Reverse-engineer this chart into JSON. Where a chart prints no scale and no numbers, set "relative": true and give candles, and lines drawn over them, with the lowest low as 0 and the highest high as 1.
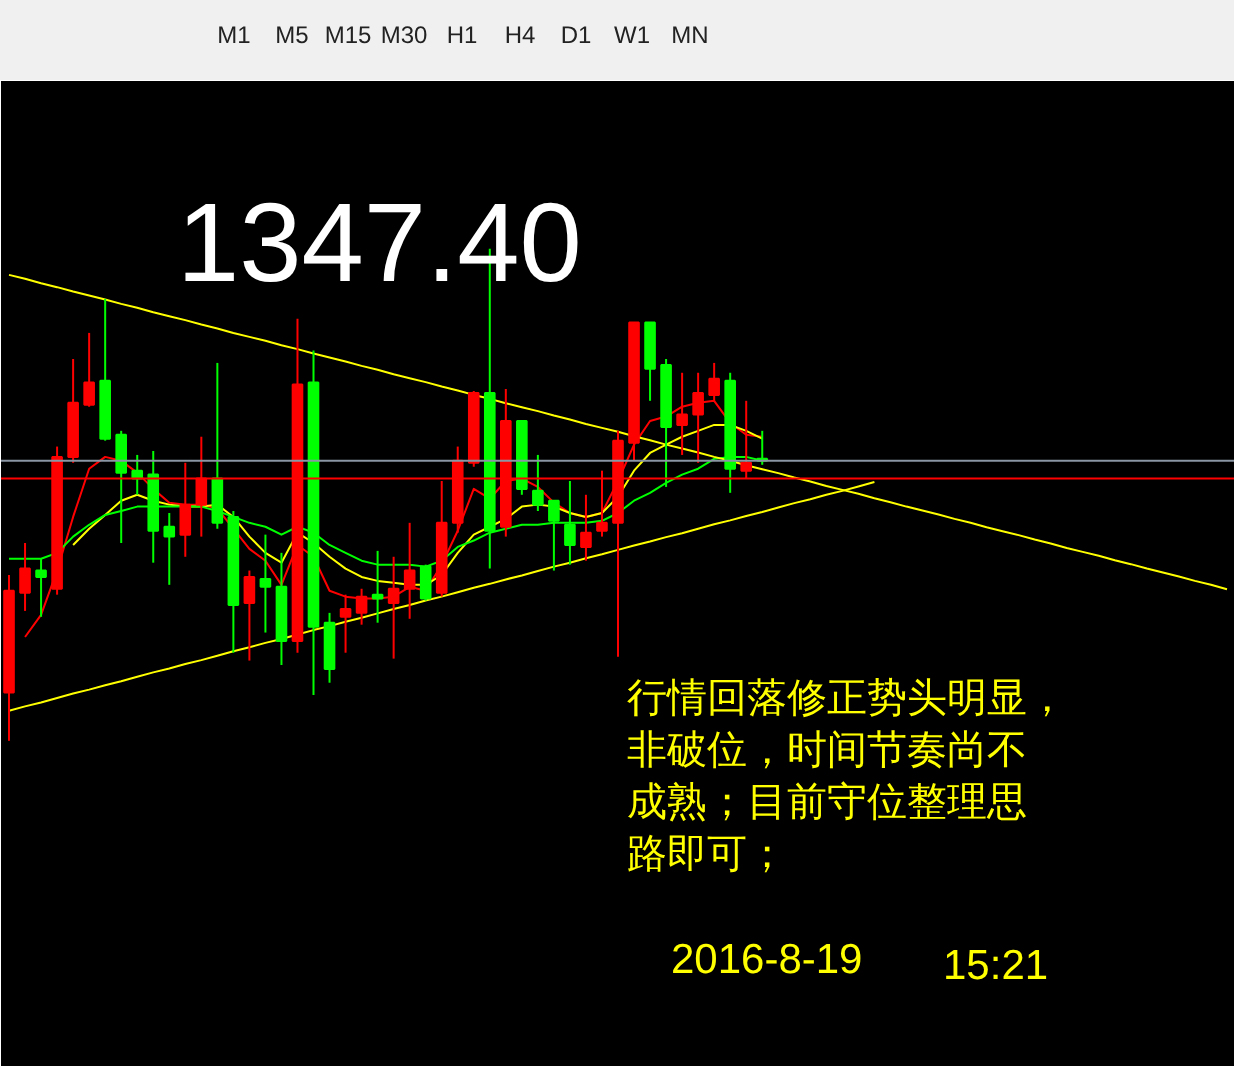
{
  "chart_data": {
    "type": "candlestick",
    "relative": true,
    "tick_labels": false,
    "categories": [
      null,
      null,
      null,
      null,
      null,
      null,
      null,
      null,
      null,
      null,
      null,
      null,
      null,
      null,
      null,
      null,
      null,
      null,
      null,
      null,
      null,
      null,
      null,
      null,
      null,
      null,
      null,
      null,
      null,
      null,
      null,
      null,
      null,
      null,
      null,
      null,
      null,
      null,
      null,
      null,
      null,
      null,
      null,
      null,
      null,
      null,
      null,
      null,
      null,
      null,
      null,
      null,
      null,
      null,
      null,
      null,
      null,
      null,
      null,
      null,
      null,
      null,
      null,
      null,
      null,
      null,
      null,
      null,
      null,
      null,
      null,
      null,
      null,
      null,
      null,
      null,
      null
    ],
    "ohlc": [
      [
        0.098,
        0.337,
        0.0,
        0.305
      ],
      [
        0.301,
        0.402,
        0.264,
        0.35
      ],
      [
        0.346,
        0.37,
        0.252,
        0.333
      ],
      [
        0.309,
        0.598,
        0.297,
        0.577
      ],
      [
        0.577,
        0.776,
        0.565,
        0.687
      ],
      [
        0.683,
        0.829,
        0.679,
        0.728
      ],
      [
        0.732,
        0.898,
        0.61,
        0.614
      ],
      [
        0.622,
        0.63,
        0.402,
        0.545
      ],
      [
        0.549,
        0.581,
        0.5,
        0.533
      ],
      [
        0.541,
        0.589,
        0.362,
        0.427
      ],
      [
        0.435,
        0.463,
        0.317,
        0.415
      ],
      [
        0.419,
        0.565,
        0.374,
        0.48
      ],
      [
        0.48,
        0.618,
        0.415,
        0.533
      ],
      [
        0.533,
        0.768,
        0.431,
        0.443
      ],
      [
        0.455,
        0.467,
        0.179,
        0.276
      ],
      [
        0.28,
        0.346,
        0.163,
        0.333
      ],
      [
        0.329,
        0.419,
        0.22,
        0.313
      ],
      [
        0.313,
        0.382,
        0.154,
        0.203
      ],
      [
        0.203,
        0.858,
        0.179,
        0.724
      ],
      [
        0.728,
        0.793,
        0.093,
        0.232
      ],
      [
        0.24,
        0.26,
        0.118,
        0.146
      ],
      [
        0.252,
        0.297,
        0.179,
        0.268
      ],
      [
        0.26,
        0.309,
        0.236,
        0.293
      ],
      [
        0.297,
        0.386,
        0.24,
        0.289
      ],
      [
        0.28,
        0.374,
        0.167,
        0.309
      ],
      [
        0.309,
        0.443,
        0.248,
        0.346
      ],
      [
        0.354,
        0.358,
        0.285,
        0.289
      ],
      [
        0.301,
        0.528,
        0.293,
        0.443
      ],
      [
        0.443,
        0.598,
        0.423,
        0.569
      ],
      [
        0.565,
        0.711,
        0.557,
        0.707
      ],
      [
        0.707,
        1.0,
        0.35,
        0.427
      ],
      [
        0.435,
        0.715,
        0.415,
        0.65
      ],
      [
        0.65,
        0.65,
        0.5,
        0.512
      ],
      [
        0.508,
        0.581,
        0.467,
        0.48
      ],
      [
        0.488,
        0.488,
        0.346,
        0.447
      ],
      [
        0.439,
        0.528,
        0.358,
        0.398
      ],
      [
        0.394,
        0.5,
        0.366,
        0.423
      ],
      [
        0.427,
        0.549,
        0.415,
        0.443
      ],
      [
        0.443,
        0.63,
        0.171,
        0.61
      ],
      [
        0.606,
        0.85,
        0.569,
        0.85
      ],
      [
        0.85,
        0.85,
        0.691,
        0.756
      ],
      [
        0.764,
        0.776,
        0.516,
        0.638
      ],
      [
        0.642,
        0.748,
        0.581,
        0.663
      ],
      [
        0.663,
        0.748,
        0.565,
        0.707
      ],
      [
        0.703,
        0.768,
        0.691,
        0.736
      ],
      [
        0.732,
        0.748,
        0.504,
        0.553
      ],
      [
        0.549,
        0.691,
        0.533,
        0.565
      ],
      [
        0.573,
        0.63,
        0.561,
        0.569
      ],
      null,
      null,
      null,
      null,
      null,
      null,
      null,
      null,
      null,
      null,
      null,
      null,
      null,
      null,
      null,
      null,
      null,
      null,
      null,
      null,
      null,
      null,
      null,
      null,
      null,
      null,
      null,
      null,
      null
    ],
    "colors": [
      "#ff0000",
      "#ff0000",
      "#00ff00",
      "#ff0000",
      "#ff0000",
      "#ff0000",
      "#00ff00",
      "#00ff00",
      "#00ff00",
      "#00ff00",
      "#00ff00",
      "#ff0000",
      "#ff0000",
      "#00ff00",
      "#00ff00",
      "#ff0000",
      "#00ff00",
      "#00ff00",
      "#ff0000",
      "#00ff00",
      "#00ff00",
      "#ff0000",
      "#ff0000",
      "#00ff00",
      "#ff0000",
      "#ff0000",
      "#00ff00",
      "#ff0000",
      "#ff0000",
      "#ff0000",
      "#00ff00",
      "#ff0000",
      "#00ff00",
      "#00ff00",
      "#00ff00",
      "#00ff00",
      "#ff0000",
      "#ff0000",
      "#ff0000",
      "#ff0000",
      "#00ff00",
      "#00ff00",
      "#ff0000",
      "#ff0000",
      "#ff0000",
      "#00ff00",
      "#ff0000",
      "#00ff00",
      null,
      null,
      null,
      null,
      null,
      null,
      null,
      null,
      null,
      null,
      null,
      null,
      null,
      null,
      null,
      null,
      null,
      null,
      null,
      null,
      null,
      null,
      null,
      null,
      null,
      null,
      null,
      null,
      null
    ],
    "series": [
      {
        "type": "line",
        "color": "#ff0000",
        "values": [
          null,
          0.211,
          0.256,
          0.346,
          0.455,
          0.553,
          0.577,
          0.569,
          0.545,
          0.512,
          0.484,
          0.48,
          0.48,
          0.472,
          0.431,
          0.39,
          0.366,
          0.317,
          0.398,
          0.374,
          0.305,
          0.293,
          0.289,
          0.289,
          0.293,
          0.313,
          0.305,
          0.358,
          0.427,
          0.512,
          0.492,
          0.528,
          0.533,
          0.516,
          0.484,
          0.463,
          0.455,
          0.463,
          0.528,
          0.602,
          0.65,
          0.659,
          0.679,
          0.687,
          0.691,
          0.646,
          0.622,
          0.618,
          null,
          null,
          null,
          null,
          null,
          null,
          null,
          null,
          null,
          null,
          null,
          null,
          null,
          null,
          null,
          null,
          null,
          null,
          null,
          null,
          null,
          null,
          null,
          null,
          null,
          null,
          null,
          null,
          null
        ]
      },
      {
        "type": "line",
        "color": "#ffff00",
        "values": [
          null,
          null,
          null,
          null,
          0.398,
          0.431,
          0.459,
          0.488,
          0.5,
          0.488,
          0.48,
          0.476,
          0.476,
          0.48,
          0.455,
          0.415,
          0.382,
          0.362,
          0.423,
          0.402,
          0.374,
          0.35,
          0.333,
          0.325,
          0.321,
          0.317,
          0.317,
          0.337,
          0.382,
          0.419,
          0.435,
          0.451,
          0.476,
          0.48,
          0.476,
          0.463,
          0.455,
          0.463,
          0.496,
          0.549,
          0.585,
          0.602,
          0.618,
          0.63,
          0.642,
          0.642,
          0.63,
          0.614,
          null,
          null,
          null,
          null,
          null,
          null,
          null,
          null,
          null,
          null,
          null,
          null,
          null,
          null,
          null,
          null,
          null,
          null,
          null,
          null,
          null,
          null,
          null,
          null,
          null,
          null,
          null,
          null,
          null
        ]
      },
      {
        "type": "line",
        "color": "#00ff00",
        "values": [
          0.37,
          0.37,
          0.37,
          0.382,
          0.415,
          0.439,
          0.459,
          0.467,
          0.476,
          0.476,
          0.476,
          0.476,
          0.476,
          0.467,
          0.455,
          0.443,
          0.435,
          0.419,
          0.435,
          0.423,
          0.398,
          0.382,
          0.366,
          0.358,
          0.358,
          0.358,
          0.354,
          0.366,
          0.394,
          0.407,
          0.423,
          0.431,
          0.439,
          0.439,
          0.443,
          0.443,
          0.443,
          0.447,
          0.463,
          0.488,
          0.504,
          0.524,
          0.541,
          0.553,
          0.573,
          0.577,
          0.577,
          0.569,
          null,
          null,
          null,
          null,
          null,
          null,
          null,
          null,
          null,
          null,
          null,
          null,
          null,
          null,
          null,
          null,
          null,
          null,
          null,
          null,
          null,
          null,
          null,
          null,
          null,
          null,
          null,
          null,
          null
        ]
      },
      {
        "type": "line",
        "color": "#ffff00",
        "values": [
          0.947,
          0.939,
          0.93,
          0.922,
          0.913,
          0.905,
          0.897,
          0.888,
          0.88,
          0.871,
          0.863,
          0.855,
          0.846,
          0.838,
          0.829,
          0.821,
          0.813,
          0.804,
          0.796,
          0.787,
          0.779,
          0.771,
          0.762,
          0.754,
          0.745,
          0.737,
          0.729,
          0.72,
          0.712,
          0.703,
          0.695,
          0.686,
          0.678,
          0.67,
          0.661,
          0.653,
          0.644,
          0.636,
          0.628,
          0.619,
          0.611,
          0.602,
          0.594,
          0.586,
          0.577,
          0.569,
          0.56,
          0.552,
          0.544,
          0.535,
          0.527,
          0.518,
          0.51,
          0.502,
          0.493,
          0.485,
          0.476,
          0.468,
          0.46,
          0.451,
          0.443,
          0.434,
          0.426,
          0.418,
          0.409,
          0.401,
          0.392,
          0.384,
          0.376,
          0.367,
          0.359,
          0.35,
          0.342,
          0.334,
          0.325,
          0.317,
          0.308
        ]
      },
      {
        "type": "line",
        "color": "#ffff00",
        "values": [
          0.061,
          0.07,
          0.078,
          0.087,
          0.096,
          0.104,
          0.113,
          0.121,
          0.13,
          0.139,
          0.147,
          0.156,
          0.164,
          0.173,
          0.182,
          0.19,
          0.199,
          0.207,
          0.216,
          0.225,
          0.233,
          0.242,
          0.25,
          0.259,
          0.268,
          0.276,
          0.285,
          0.293,
          0.302,
          0.311,
          0.319,
          0.328,
          0.336,
          0.345,
          0.354,
          0.362,
          0.371,
          0.379,
          0.388,
          0.397,
          0.405,
          0.414,
          0.422,
          0.431,
          0.44,
          0.448,
          0.457,
          0.465,
          0.474,
          0.483,
          0.491,
          0.5,
          0.508,
          0.517,
          0.526,
          null,
          null,
          null,
          null,
          null,
          null,
          null,
          null,
          null,
          null,
          null,
          null,
          null,
          null,
          null,
          null,
          null,
          null,
          null,
          null,
          null,
          null
        ]
      }
    ],
    "ref_lines": [
      {
        "axis": "y",
        "value": 0.569,
        "color": "#8a96a3"
      },
      {
        "axis": "y",
        "value": 0.533,
        "color": "#ff0000"
      }
    ],
    "annotations": [
      "1347.40",
      "行情回落修正势头明显，非破位，时间节奏尚不成熟；目前守位整理思路即可；",
      "2016-8-19",
      "15:21",
      "M1",
      "M5",
      "M15",
      "M30",
      "H1",
      "H4",
      "D1",
      "W1",
      "MN"
    ]
  }
}
